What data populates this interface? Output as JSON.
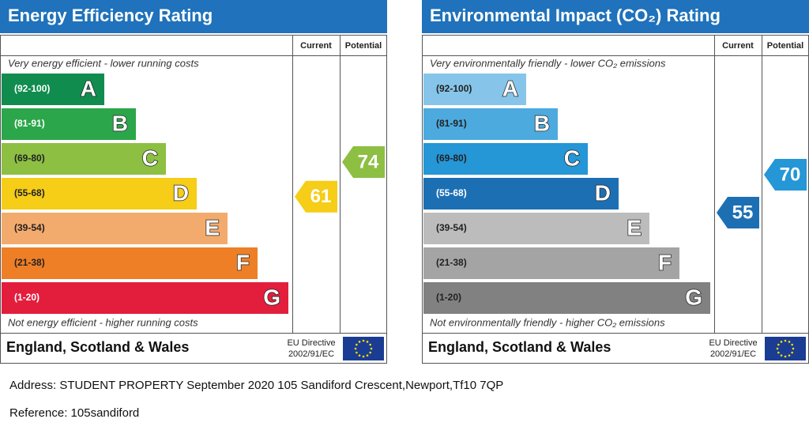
{
  "panels": [
    {
      "title": "Energy Efficiency Rating",
      "current_label": "Current",
      "potential_label": "Potential",
      "top_note": "Very energy efficient - lower running costs",
      "bottom_note": "Not energy efficient - higher running costs",
      "bands": [
        {
          "range": "(92-100)",
          "letter": "A",
          "color": "#118c4f"
        },
        {
          "range": "(81-91)",
          "letter": "B",
          "color": "#2ca64a"
        },
        {
          "range": "(69-80)",
          "letter": "C",
          "color": "#8dbf43"
        },
        {
          "range": "(55-68)",
          "letter": "D",
          "color": "#f6cd17"
        },
        {
          "range": "(39-54)",
          "letter": "E",
          "color": "#f3ab6d"
        },
        {
          "range": "(21-38)",
          "letter": "F",
          "color": "#ee7f26"
        },
        {
          "range": "(1-20)",
          "letter": "G",
          "color": "#e31e3d"
        }
      ],
      "current": 61,
      "potential": 74,
      "footer": "England, Scotland & Wales",
      "directive": "EU Directive",
      "directive_code": "2002/91/EC"
    },
    {
      "title": "Environmental Impact (CO₂) Rating",
      "current_label": "Current",
      "potential_label": "Potential",
      "top_note": "Very environmentally friendly - lower CO₂ emissions",
      "bottom_note": "Not environmentally friendly - higher CO₂ emissions",
      "bands": [
        {
          "range": "(92-100)",
          "letter": "A",
          "color": "#86c5e9"
        },
        {
          "range": "(81-91)",
          "letter": "B",
          "color": "#4caadf"
        },
        {
          "range": "(69-80)",
          "letter": "C",
          "color": "#2596d6"
        },
        {
          "range": "(55-68)",
          "letter": "D",
          "color": "#1d6fb4"
        },
        {
          "range": "(39-54)",
          "letter": "E",
          "color": "#bcbcbc"
        },
        {
          "range": "(21-38)",
          "letter": "F",
          "color": "#a4a4a4"
        },
        {
          "range": "(1-20)",
          "letter": "G",
          "color": "#818181"
        }
      ],
      "current": 55,
      "potential": 70,
      "footer": "England, Scotland & Wales",
      "directive": "EU Directive",
      "directive_code": "2002/91/EC"
    }
  ],
  "address": "Address: STUDENT PROPERTY September 2020 105 Sandiford Crescent,Newport,Tf10 7QP",
  "reference": "Reference: 105sandiford"
}
